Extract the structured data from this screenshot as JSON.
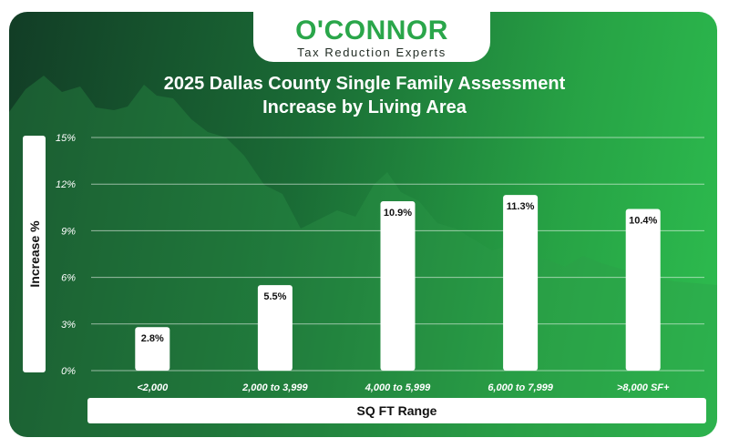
{
  "brand": {
    "logo_text": "O'CONNOR",
    "tagline": "Tax Reduction Experts"
  },
  "colors": {
    "brand_green": "#2aa64a",
    "dark_green": "#123d26",
    "bar_fill": "#ffffff"
  },
  "chart_data": {
    "type": "bar",
    "title": "2025 Dallas County Single Family Assessment Increase by Living Area",
    "title_lines": [
      "2025 Dallas County Single Family Assessment",
      "Increase by Living Area"
    ],
    "xlabel": "SQ FT Range",
    "ylabel": "Increase %",
    "categories": [
      "<2,000",
      "2,000 to 3,999",
      "4,000 to 5,999",
      "6,000 to 7,999",
      ">8,000 SF+"
    ],
    "values": [
      2.8,
      5.5,
      10.9,
      11.3,
      10.4
    ],
    "value_labels": [
      "2.8%",
      "5.5%",
      "10.9%",
      "11.3%",
      "10.4%"
    ],
    "ylim": [
      0,
      15
    ],
    "yticks": [
      0,
      3,
      6,
      9,
      12,
      15
    ],
    "ytick_labels": [
      "0%",
      "3%",
      "6%",
      "9%",
      "12%",
      "15%"
    ],
    "grid": true,
    "legend": "none"
  }
}
